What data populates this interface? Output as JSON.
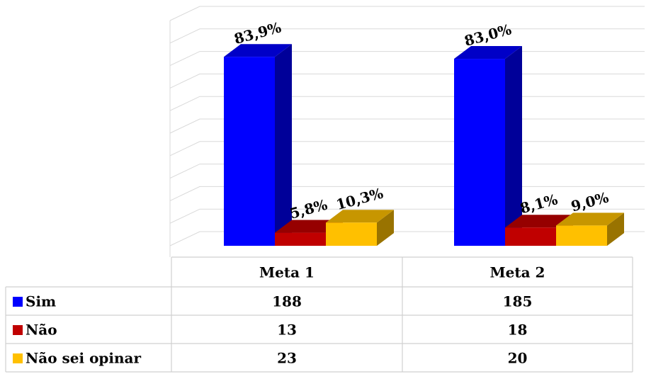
{
  "chart_data": {
    "type": "bar3d",
    "categories": [
      "Meta 1",
      "Meta 2"
    ],
    "series": [
      {
        "name": "Sim",
        "color": "#0000ff",
        "values": [
          83.9,
          83.0
        ],
        "value_labels": [
          "83,9%",
          "83,0%"
        ],
        "table_values": [
          188,
          185
        ]
      },
      {
        "name": "Não",
        "color": "#c00000",
        "values": [
          5.8,
          8.1
        ],
        "value_labels": [
          "5,8%",
          "8,1%"
        ],
        "table_values": [
          13,
          18
        ]
      },
      {
        "name": "Não sei opinar",
        "color": "#ffc000",
        "values": [
          10.3,
          9.0
        ],
        "value_labels": [
          "10,3%",
          "9,0%"
        ],
        "table_values": [
          23,
          20
        ]
      }
    ],
    "ylim": [
      0,
      100
    ],
    "yticks": [
      0,
      10,
      20,
      30,
      40,
      50,
      60,
      70,
      80,
      90,
      100
    ],
    "grid": true
  }
}
